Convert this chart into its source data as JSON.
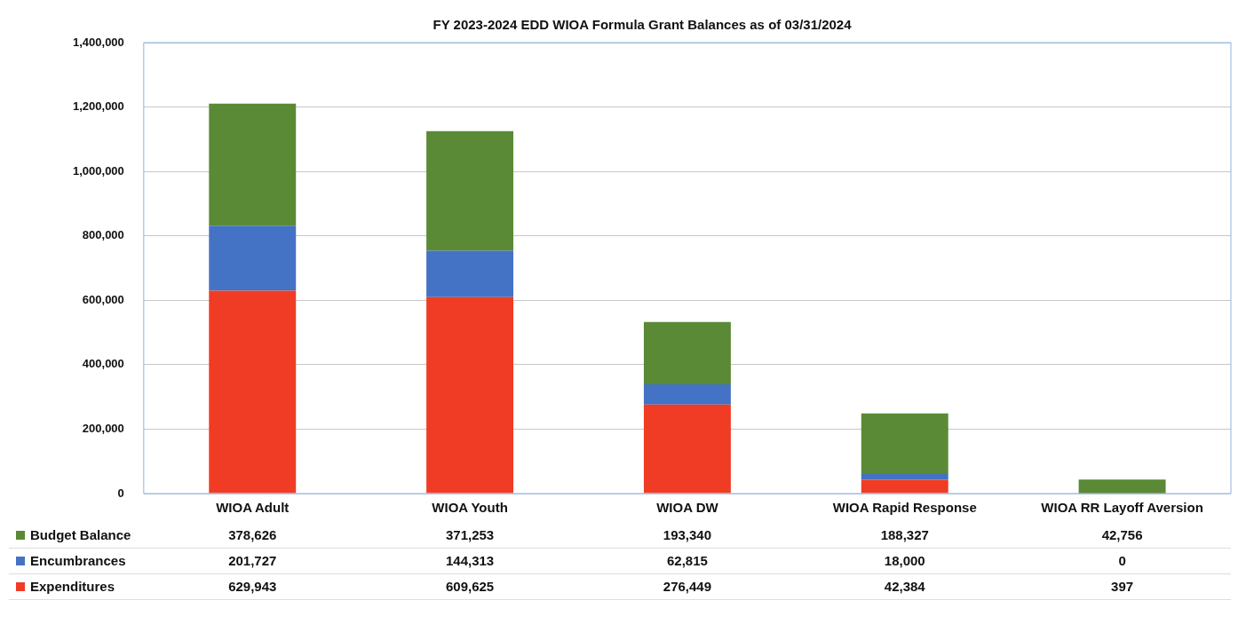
{
  "chart_data": {
    "type": "bar",
    "title": "FY 2023-2024 EDD WIOA Formula Grant Balances as of 03/31/2024",
    "stacked": true,
    "categories": [
      "WIOA Adult",
      "WIOA Youth",
      "WIOA DW",
      "WIOA Rapid Response",
      "WIOA RR Layoff Aversion"
    ],
    "series": [
      {
        "name": "Expenditures",
        "color": "#f03c24",
        "values": [
          629943,
          609625,
          276449,
          42384,
          397
        ],
        "value_labels": [
          "629,943",
          "609,625",
          "276,449",
          "42,384",
          "397"
        ]
      },
      {
        "name": "Encumbrances",
        "color": "#4472c4",
        "values": [
          201727,
          144313,
          62815,
          18000,
          0
        ],
        "value_labels": [
          "201,727",
          "144,313",
          "62,815",
          "18,000",
          "0"
        ]
      },
      {
        "name": "Budget Balance",
        "color": "#5a8a35",
        "values": [
          378626,
          371253,
          193340,
          188327,
          42756
        ],
        "value_labels": [
          "378,626",
          "371,253",
          "193,340",
          "188,327",
          "42,756"
        ]
      }
    ],
    "ylim": [
      0,
      1400000
    ],
    "yticks": [
      {
        "value": 0,
        "label": "0"
      },
      {
        "value": 200000,
        "label": "200,000"
      },
      {
        "value": 400000,
        "label": "400,000"
      },
      {
        "value": 600000,
        "label": "600,000"
      },
      {
        "value": 800000,
        "label": "800,000"
      },
      {
        "value": 1000000,
        "label": "1,000,000"
      },
      {
        "value": 1200000,
        "label": "1,200,000"
      },
      {
        "value": 1400000,
        "label": "1,400,000"
      }
    ],
    "grid": "y",
    "legend": "bottom"
  }
}
